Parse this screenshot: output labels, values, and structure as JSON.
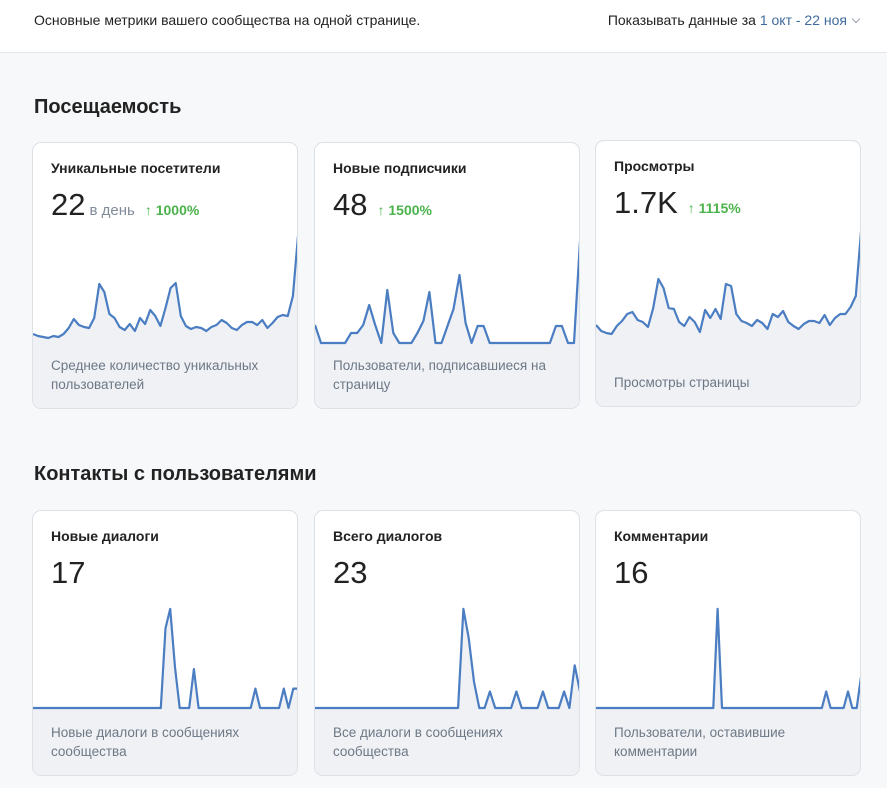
{
  "header": {
    "subtitle": "Основные метрики вашего сообщества на одной странице.",
    "period_label": "Показывать данные за",
    "period_range": "1 окт - 22 ноя"
  },
  "colors": {
    "line": "#4a7dc1",
    "fill": "#eff1f5",
    "positive": "#4bb34b",
    "link": "#3f6b9e"
  },
  "sections": [
    {
      "title": "Посещаемость",
      "cards": [
        {
          "title": "Уникальные посетители",
          "value": "22",
          "unit": "в день",
          "change": "↑ 1000%",
          "footer": "Среднее количество уникальных пользователей",
          "series": [
            9,
            7,
            6,
            5,
            7,
            6,
            9,
            15,
            24,
            18,
            16,
            15,
            25,
            59,
            51,
            29,
            25,
            16,
            13,
            19,
            12,
            25,
            19,
            33,
            27,
            17,
            35,
            55,
            60,
            27,
            17,
            14,
            16,
            15,
            12,
            16,
            18,
            23,
            20,
            15,
            13,
            18,
            21,
            21,
            18,
            23,
            15,
            20,
            26,
            28,
            27,
            47,
            107
          ]
        },
        {
          "title": "Новые подписчики",
          "value": "48",
          "unit": "",
          "change": "↑ 1500%",
          "footer": "Пользователи, подписавшиеся на страницу",
          "series": [
            18,
            0,
            0,
            0,
            0,
            0,
            10,
            10,
            18,
            38,
            18,
            0,
            53,
            10,
            0,
            0,
            0,
            10,
            22,
            51,
            0,
            0,
            17,
            34,
            68,
            20,
            0,
            17,
            17,
            0,
            0,
            0,
            0,
            0,
            0,
            0,
            0,
            0,
            0,
            0,
            17,
            17,
            0,
            0,
            102
          ]
        },
        {
          "title": "Просмотры",
          "value": "1.7K",
          "unit": "",
          "change": "↑ 1115%",
          "footer": "Просмотры страницы",
          "series": [
            16,
            10,
            8,
            7,
            15,
            20,
            27,
            29,
            21,
            19,
            14,
            33,
            62,
            53,
            33,
            32,
            19,
            15,
            24,
            19,
            9,
            31,
            23,
            32,
            22,
            57,
            55,
            27,
            20,
            18,
            15,
            21,
            18,
            12,
            27,
            24,
            30,
            19,
            15,
            12,
            17,
            20,
            20,
            18,
            26,
            16,
            23,
            27,
            27,
            34,
            45,
            109
          ]
        }
      ]
    },
    {
      "title": "Контакты с пользователями",
      "cards": [
        {
          "title": "Новые диалоги",
          "value": "17",
          "unit": "",
          "change": "",
          "footer": "Новые диалоги в сообщениях сообщества",
          "series": [
            0,
            0,
            0,
            0,
            0,
            0,
            0,
            0,
            0,
            0,
            0,
            0,
            0,
            0,
            0,
            0,
            0,
            0,
            0,
            0,
            0,
            0,
            0,
            0,
            0,
            0,
            0,
            0,
            82,
            102,
            42,
            0,
            0,
            0,
            40,
            0,
            0,
            0,
            0,
            0,
            0,
            0,
            0,
            0,
            0,
            0,
            0,
            20,
            0,
            0,
            0,
            0,
            0,
            20,
            0,
            20,
            20
          ]
        },
        {
          "title": "Всего диалогов",
          "value": "23",
          "unit": "",
          "change": "",
          "footer": "Все диалоги в сообщениях сообщества",
          "series": [
            0,
            0,
            0,
            0,
            0,
            0,
            0,
            0,
            0,
            0,
            0,
            0,
            0,
            0,
            0,
            0,
            0,
            0,
            0,
            0,
            0,
            0,
            0,
            0,
            0,
            0,
            0,
            0,
            102,
            72,
            27,
            0,
            0,
            17,
            0,
            0,
            0,
            0,
            17,
            0,
            0,
            0,
            0,
            17,
            0,
            0,
            0,
            17,
            0,
            44,
            17
          ]
        },
        {
          "title": "Комментарии",
          "value": "16",
          "unit": "",
          "change": "",
          "footer": "Пользователи, оставившие комментарии",
          "series": [
            0,
            0,
            0,
            0,
            0,
            0,
            0,
            0,
            0,
            0,
            0,
            0,
            0,
            0,
            0,
            0,
            0,
            0,
            0,
            0,
            0,
            0,
            0,
            0,
            0,
            0,
            0,
            0,
            102,
            0,
            0,
            0,
            0,
            0,
            0,
            0,
            0,
            0,
            0,
            0,
            0,
            0,
            0,
            0,
            0,
            0,
            0,
            0,
            0,
            0,
            0,
            0,
            0,
            17,
            0,
            0,
            0,
            0,
            17,
            0,
            0,
            32
          ]
        }
      ]
    }
  ]
}
